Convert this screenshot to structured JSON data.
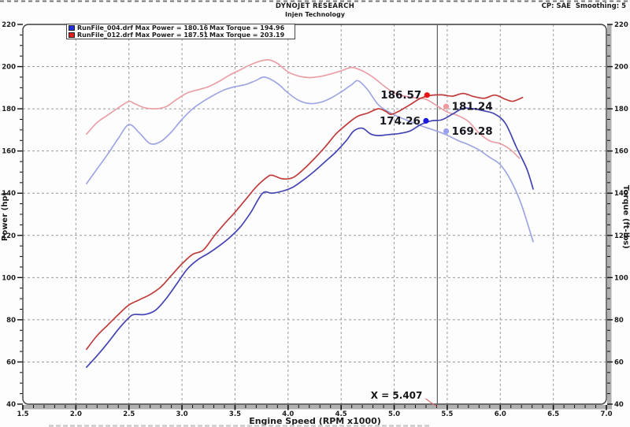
{
  "window": {
    "title": "DYNOJET RESEARCH",
    "subtitle": "Injen Technology",
    "settings": "CP: SAE  Smoothing: 5"
  },
  "legend": {
    "rows": [
      {
        "file": "RunFile_004.drf",
        "power": "Max Power = 180.16",
        "torque": "Max Torque = 194.96",
        "color": "#2230d8"
      },
      {
        "file": "RunFile_012.drf",
        "power": "Max Power = 187.51",
        "torque": "Max Torque = 203.19",
        "color": "#e02020"
      }
    ]
  },
  "chart_data": {
    "type": "line",
    "title": "DYNOJET RESEARCH",
    "subtitle": "Injen Technology",
    "xlabel": "Engine Speed (RPM x1000)",
    "ylabel_left": "Power (hp)",
    "ylabel_right": "Torque (ft-lbs)",
    "xlim": [
      1.5,
      7.0
    ],
    "ylim": [
      40,
      220
    ],
    "x_ticks": [
      "1.5",
      "2.0",
      "2.5",
      "3.0",
      "3.5",
      "4.0",
      "4.5",
      "5.0",
      "5.5",
      "6.0",
      "6.5",
      "7.0"
    ],
    "y_ticks": [
      "40",
      "60",
      "80",
      "100",
      "120",
      "140",
      "160",
      "180",
      "200",
      "220"
    ],
    "x_minor_step": 0.1,
    "y_minor_step": 5,
    "grid": "dashed",
    "legend_position": "top-left",
    "cursor": {
      "x": 5.407,
      "label": "X = 5.407"
    },
    "series": [
      {
        "name": "RunFile_004.drf Torque",
        "run": "RunFile_004.drf",
        "quantity": "torque",
        "color": "#a0a6e2",
        "points": [
          [
            2.1,
            144.5
          ],
          [
            2.2,
            151.5
          ],
          [
            2.3,
            158.5
          ],
          [
            2.4,
            166
          ],
          [
            2.5,
            172.5
          ],
          [
            2.6,
            168.5
          ],
          [
            2.7,
            163.5
          ],
          [
            2.8,
            164.5
          ],
          [
            2.9,
            169
          ],
          [
            3.0,
            175
          ],
          [
            3.1,
            180
          ],
          [
            3.2,
            183.5
          ],
          [
            3.3,
            186.5
          ],
          [
            3.4,
            189
          ],
          [
            3.5,
            190.5
          ],
          [
            3.6,
            191.5
          ],
          [
            3.7,
            193.5
          ],
          [
            3.78,
            195
          ],
          [
            3.9,
            192
          ],
          [
            4.0,
            187.5
          ],
          [
            4.1,
            184
          ],
          [
            4.2,
            182.5
          ],
          [
            4.3,
            183
          ],
          [
            4.4,
            185
          ],
          [
            4.5,
            188
          ],
          [
            4.6,
            191.5
          ],
          [
            4.66,
            193.3
          ],
          [
            4.75,
            189
          ],
          [
            4.85,
            182
          ],
          [
            4.95,
            178.5
          ],
          [
            5.05,
            176
          ],
          [
            5.15,
            174
          ],
          [
            5.25,
            172
          ],
          [
            5.41,
            169.3
          ],
          [
            5.5,
            167.5
          ],
          [
            5.6,
            165
          ],
          [
            5.7,
            163
          ],
          [
            5.8,
            160.5
          ],
          [
            5.9,
            157
          ],
          [
            6.0,
            153.5
          ],
          [
            6.1,
            146
          ],
          [
            6.2,
            134.5
          ],
          [
            6.31,
            117
          ]
        ]
      },
      {
        "name": "RunFile_012.drf Torque",
        "run": "RunFile_012.drf",
        "quantity": "torque",
        "color": "#e9a0a6",
        "points": [
          [
            2.1,
            168
          ],
          [
            2.2,
            173.5
          ],
          [
            2.3,
            177
          ],
          [
            2.4,
            180.5
          ],
          [
            2.5,
            183.5
          ],
          [
            2.55,
            182.5
          ],
          [
            2.65,
            180.5
          ],
          [
            2.75,
            180
          ],
          [
            2.85,
            181
          ],
          [
            2.95,
            184.5
          ],
          [
            3.05,
            187.5
          ],
          [
            3.15,
            189
          ],
          [
            3.25,
            190.5
          ],
          [
            3.35,
            193
          ],
          [
            3.45,
            196
          ],
          [
            3.55,
            198.5
          ],
          [
            3.65,
            201
          ],
          [
            3.75,
            202.8
          ],
          [
            3.82,
            203.2
          ],
          [
            3.9,
            201.5
          ],
          [
            4.0,
            197.5
          ],
          [
            4.1,
            195.5
          ],
          [
            4.2,
            194.8
          ],
          [
            4.3,
            195.3
          ],
          [
            4.4,
            196.5
          ],
          [
            4.5,
            198
          ],
          [
            4.6,
            199.6
          ],
          [
            4.7,
            198
          ],
          [
            4.8,
            195
          ],
          [
            4.9,
            191
          ],
          [
            5.0,
            187.5
          ],
          [
            5.1,
            186
          ],
          [
            5.2,
            185.2
          ],
          [
            5.3,
            184.5
          ],
          [
            5.41,
            181.2
          ],
          [
            5.5,
            178.5
          ],
          [
            5.6,
            176.8
          ],
          [
            5.7,
            174
          ],
          [
            5.8,
            168.5
          ],
          [
            5.9,
            164.8
          ],
          [
            6.0,
            163.5
          ],
          [
            6.1,
            160.5
          ],
          [
            6.18,
            156.5
          ]
        ]
      },
      {
        "name": "RunFile_004.drf Power",
        "run": "RunFile_004.drf",
        "quantity": "power",
        "color": "#4444b2",
        "points": [
          [
            2.1,
            57.5
          ],
          [
            2.2,
            63
          ],
          [
            2.3,
            69
          ],
          [
            2.4,
            75.5
          ],
          [
            2.5,
            81
          ],
          [
            2.55,
            82.5
          ],
          [
            2.65,
            82.5
          ],
          [
            2.75,
            84.5
          ],
          [
            2.85,
            90
          ],
          [
            2.95,
            97
          ],
          [
            3.05,
            104
          ],
          [
            3.15,
            108.5
          ],
          [
            3.25,
            111.5
          ],
          [
            3.35,
            115
          ],
          [
            3.45,
            119
          ],
          [
            3.55,
            124
          ],
          [
            3.65,
            131
          ],
          [
            3.76,
            140
          ],
          [
            3.85,
            140
          ],
          [
            3.95,
            141
          ],
          [
            4.05,
            143
          ],
          [
            4.15,
            146.5
          ],
          [
            4.25,
            150.5
          ],
          [
            4.35,
            155
          ],
          [
            4.45,
            159.5
          ],
          [
            4.55,
            165
          ],
          [
            4.62,
            169.5
          ],
          [
            4.7,
            170.8
          ],
          [
            4.78,
            168
          ],
          [
            4.85,
            167.3
          ],
          [
            4.95,
            167.8
          ],
          [
            5.05,
            168.3
          ],
          [
            5.15,
            169.5
          ],
          [
            5.25,
            172.5
          ],
          [
            5.35,
            174.3
          ],
          [
            5.45,
            174.8
          ],
          [
            5.55,
            177.5
          ],
          [
            5.65,
            180.2
          ],
          [
            5.75,
            180
          ],
          [
            5.85,
            179
          ],
          [
            5.95,
            177.5
          ],
          [
            6.05,
            173
          ],
          [
            6.15,
            162
          ],
          [
            6.25,
            151.5
          ],
          [
            6.31,
            142
          ]
        ]
      },
      {
        "name": "RunFile_012.drf Power",
        "run": "RunFile_012.drf",
        "quantity": "power",
        "color": "#c03c3c",
        "points": [
          [
            2.1,
            66
          ],
          [
            2.2,
            72.5
          ],
          [
            2.3,
            77.5
          ],
          [
            2.4,
            82.5
          ],
          [
            2.5,
            87
          ],
          [
            2.6,
            89.5
          ],
          [
            2.7,
            92
          ],
          [
            2.8,
            95.5
          ],
          [
            2.9,
            101
          ],
          [
            3.0,
            106.5
          ],
          [
            3.1,
            111
          ],
          [
            3.2,
            113
          ],
          [
            3.3,
            119.5
          ],
          [
            3.4,
            125.5
          ],
          [
            3.5,
            131
          ],
          [
            3.6,
            137
          ],
          [
            3.7,
            143
          ],
          [
            3.8,
            147.5
          ],
          [
            3.85,
            148.5
          ],
          [
            3.95,
            146.8
          ],
          [
            4.05,
            147.5
          ],
          [
            4.15,
            151.5
          ],
          [
            4.25,
            156.5
          ],
          [
            4.35,
            162
          ],
          [
            4.45,
            168
          ],
          [
            4.55,
            172.5
          ],
          [
            4.65,
            176.3
          ],
          [
            4.75,
            178
          ],
          [
            4.85,
            180
          ],
          [
            4.92,
            178.8
          ],
          [
            4.97,
            177.4
          ],
          [
            5.05,
            179
          ],
          [
            5.15,
            182
          ],
          [
            5.25,
            185
          ],
          [
            5.35,
            186.4
          ],
          [
            5.45,
            186.6
          ],
          [
            5.55,
            186
          ],
          [
            5.65,
            187.3
          ],
          [
            5.75,
            185.8
          ],
          [
            5.85,
            185
          ],
          [
            5.95,
            186.5
          ],
          [
            6.05,
            184.5
          ],
          [
            6.12,
            183.6
          ],
          [
            6.21,
            185.4
          ]
        ]
      }
    ],
    "markers": [
      {
        "value": "186.57",
        "x": 5.31,
        "y": 186.5,
        "color": "#e81414",
        "side": "left"
      },
      {
        "value": "181.24",
        "x": 5.49,
        "y": 181.1,
        "color": "#f0989e",
        "side": "right"
      },
      {
        "value": "174.26",
        "x": 5.3,
        "y": 174.3,
        "color": "#1a1ae0",
        "side": "left"
      },
      {
        "value": "169.28",
        "x": 5.49,
        "y": 169.4,
        "color": "#98a2f0",
        "side": "right"
      }
    ]
  }
}
